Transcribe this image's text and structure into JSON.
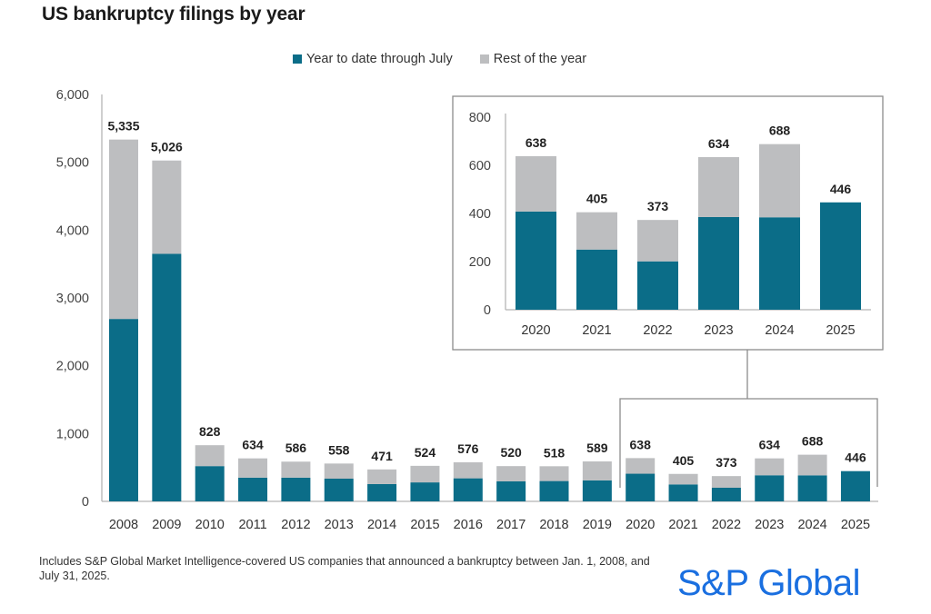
{
  "chart_data": [
    {
      "id": "main",
      "type": "bar",
      "stacked": true,
      "title": "US bankruptcy filings by year",
      "xlabel": "",
      "ylabel": "",
      "ylim": [
        0,
        6000
      ],
      "yticks": [
        0,
        1000,
        2000,
        3000,
        4000,
        5000,
        6000
      ],
      "ytick_labels": [
        "0",
        "1,000",
        "2,000",
        "3,000",
        "4,000",
        "5,000",
        "6,000"
      ],
      "grid": false,
      "legend_position": "top",
      "categories": [
        "2008",
        "2009",
        "2010",
        "2011",
        "2012",
        "2013",
        "2014",
        "2015",
        "2016",
        "2017",
        "2018",
        "2019",
        "2020",
        "2021",
        "2022",
        "2023",
        "2024",
        "2025"
      ],
      "totals": [
        5335,
        5026,
        828,
        634,
        586,
        558,
        471,
        524,
        576,
        520,
        518,
        589,
        638,
        405,
        373,
        634,
        688,
        446
      ],
      "total_labels": [
        "5,335",
        "5,026",
        "828",
        "634",
        "586",
        "558",
        "471",
        "524",
        "576",
        "520",
        "518",
        "589",
        "638",
        "405",
        "373",
        "634",
        "688",
        "446"
      ],
      "series": [
        {
          "name": "Year to date through July",
          "color": "#0b6d88",
          "values": [
            2690,
            3650,
            520,
            350,
            350,
            335,
            255,
            280,
            340,
            295,
            300,
            310,
            408,
            250,
            201,
            385,
            384,
            446
          ]
        },
        {
          "name": "Rest of the year",
          "color": "#bdbec0",
          "values": [
            2645,
            1376,
            308,
            284,
            236,
            223,
            216,
            244,
            236,
            225,
            218,
            279,
            230,
            155,
            172,
            249,
            304,
            0
          ]
        }
      ],
      "annotation": "Bracket highlighting 2020–2025, expanded in inset"
    },
    {
      "id": "inset",
      "type": "bar",
      "stacked": true,
      "title": "",
      "ylim": [
        0,
        800
      ],
      "yticks": [
        0,
        200,
        400,
        600,
        800
      ],
      "ytick_labels": [
        "0",
        "200",
        "400",
        "600",
        "800"
      ],
      "grid": false,
      "categories": [
        "2020",
        "2021",
        "2022",
        "2023",
        "2024",
        "2025"
      ],
      "totals": [
        638,
        405,
        373,
        634,
        688,
        446
      ],
      "total_labels": [
        "638",
        "405",
        "373",
        "634",
        "688",
        "446"
      ],
      "series": [
        {
          "name": "Year to date through July",
          "color": "#0b6d88",
          "values": [
            408,
            250,
            201,
            385,
            384,
            446
          ]
        },
        {
          "name": "Rest of the year",
          "color": "#bdbec0",
          "values": [
            230,
            155,
            172,
            249,
            304,
            0
          ]
        }
      ]
    }
  ],
  "header": {
    "title": "US bankruptcy filings by year"
  },
  "legend": [
    {
      "label": "Year to date through July",
      "color": "#0b6d88"
    },
    {
      "label": "Rest of the year",
      "color": "#bdbec0"
    }
  ],
  "footnote": {
    "line1": "Includes S&P Global Market Intelligence-covered US companies that announced a bankruptcy between Jan. 1, 2008, and",
    "line2": "July 31, 2025."
  },
  "brand": {
    "name": "S&P Global",
    "color": "#1a6fe0"
  }
}
